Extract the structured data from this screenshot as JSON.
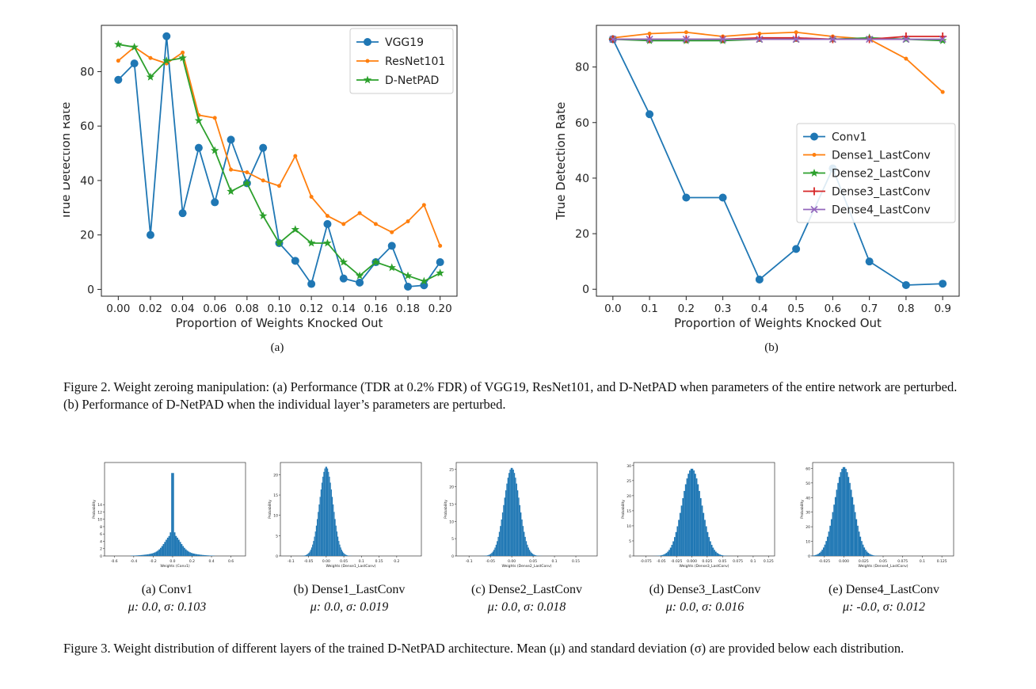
{
  "figure2": {
    "sub_a": "(a)",
    "sub_b": "(b)",
    "caption_label": "Figure 2.",
    "caption_text": "Weight zeroing manipulation: (a) Performance (TDR at 0.2% FDR) of VGG19, ResNet101, and D-NetPAD when parameters of the entire network are perturbed. (b) Performance of D-NetPAD when the individual layer’s parameters are perturbed."
  },
  "figure3": {
    "caption_label": "Figure 3.",
    "caption_text": "Weight distribution of different layers of the trained D-NetPAD architecture. Mean (μ) and standard deviation (σ) are provided below each distribution.",
    "panels": [
      {
        "label": "(a) Conv1",
        "stats": "μ: 0.0, σ: 0.103"
      },
      {
        "label": "(b) Dense1_LastConv",
        "stats": "μ: 0.0, σ: 0.019"
      },
      {
        "label": "(c) Dense2_LastConv",
        "stats": "μ: 0.0, σ: 0.018"
      },
      {
        "label": "(d) Dense3_LastConv",
        "stats": "μ: 0.0, σ: 0.016"
      },
      {
        "label": "(e) Dense4_LastConv",
        "stats": "μ: -0.0, σ: 0.012"
      }
    ]
  },
  "chart_data": [
    {
      "type": "line",
      "xlabel": "Proportion of Weights Knocked Out",
      "ylabel": "True Detection Rate",
      "xlim": [
        -0.0105,
        0.2105
      ],
      "ylim": [
        -2.5,
        97
      ],
      "xticks": [
        "0.00",
        "0.02",
        "0.04",
        "0.06",
        "0.08",
        "0.10",
        "0.12",
        "0.14",
        "0.16",
        "0.18",
        "0.20"
      ],
      "yticks": [
        "0",
        "20",
        "40",
        "60",
        "80"
      ],
      "legend": "top-right",
      "x": [
        0.0,
        0.01,
        0.02,
        0.03,
        0.04,
        0.05,
        0.06,
        0.07,
        0.08,
        0.09,
        0.1,
        0.11,
        0.12,
        0.13,
        0.14,
        0.15,
        0.16,
        0.17,
        0.18,
        0.19,
        0.2
      ],
      "series": [
        {
          "name": "VGG19",
          "color": "#1f77b4",
          "marker": "circle",
          "values": [
            77,
            83,
            20,
            93,
            28,
            52,
            32,
            55,
            39,
            52,
            17,
            10.5,
            2,
            24,
            4,
            2.5,
            10,
            16,
            1,
            1.5,
            10
          ]
        },
        {
          "name": "ResNet101",
          "color": "#ff7f0e",
          "marker": "dot",
          "values": [
            84,
            89,
            85,
            83,
            87,
            64,
            63,
            44,
            43,
            40,
            38,
            49,
            34,
            27,
            24,
            28,
            24,
            21,
            25,
            31,
            16
          ]
        },
        {
          "name": "D-NetPAD",
          "color": "#2ca02c",
          "marker": "star",
          "values": [
            90,
            89,
            78,
            84,
            85,
            62,
            51,
            36,
            39,
            27,
            17,
            22,
            17,
            17,
            10,
            5,
            10,
            8,
            5,
            3,
            6
          ]
        }
      ]
    },
    {
      "type": "line",
      "xlabel": "Proportion of Weights Knocked Out",
      "ylabel": "True Detection Rate",
      "xlim": [
        -0.045,
        0.945
      ],
      "ylim": [
        -2.5,
        95
      ],
      "xticks": [
        "0.0",
        "0.1",
        "0.2",
        "0.3",
        "0.4",
        "0.5",
        "0.6",
        "0.7",
        "0.8",
        "0.9"
      ],
      "yticks": [
        "0",
        "20",
        "40",
        "60",
        "80"
      ],
      "legend": "center-right",
      "x": [
        0.0,
        0.1,
        0.2,
        0.3,
        0.4,
        0.5,
        0.6,
        0.7,
        0.8,
        0.9
      ],
      "series": [
        {
          "name": "Conv1",
          "color": "#1f77b4",
          "marker": "circle",
          "values": [
            90,
            63,
            33,
            33,
            3.5,
            14.5,
            43.5,
            10,
            1.5,
            2
          ]
        },
        {
          "name": "Dense1_LastConv",
          "color": "#ff7f0e",
          "marker": "dot",
          "values": [
            90.5,
            92,
            92.5,
            91,
            92,
            92.5,
            91,
            90,
            83,
            71
          ]
        },
        {
          "name": "Dense2_LastConv",
          "color": "#2ca02c",
          "marker": "star",
          "values": [
            90,
            89.5,
            89.5,
            89.5,
            90,
            90,
            90,
            90.5,
            90,
            89.5
          ]
        },
        {
          "name": "Dense3_LastConv",
          "color": "#d62728",
          "marker": "plus",
          "values": [
            90,
            90,
            90,
            90,
            90.5,
            90.5,
            90,
            90,
            91,
            91
          ]
        },
        {
          "name": "Dense4_LastConv",
          "color": "#9467bd",
          "marker": "x",
          "values": [
            90,
            90,
            90,
            90,
            90,
            90,
            90,
            90,
            90,
            90
          ]
        }
      ]
    },
    {
      "type": "bar",
      "xlabel": "Weights (Conv1)",
      "ylabel": "Probability",
      "xlim": [
        -0.7,
        0.75
      ],
      "ylim": [
        0,
        25.5
      ],
      "xticks": [
        -0.6,
        -0.4,
        -0.2,
        0.0,
        0.2,
        0.4,
        0.6
      ],
      "yticks": [
        0,
        2,
        4,
        6,
        8,
        10,
        12,
        14
      ],
      "mu": 0.0,
      "sigma": 0.103,
      "peak": 25,
      "shape": "spike"
    },
    {
      "type": "bar",
      "xlabel": "Weights (Dense1_LastConv)",
      "ylabel": "Probability",
      "xlim": [
        -0.13,
        0.27
      ],
      "ylim": [
        0,
        23
      ],
      "xticks": [
        -0.1,
        -0.05,
        0.0,
        0.05,
        0.1,
        0.15,
        0.2
      ],
      "yticks": [
        0,
        5,
        10,
        15,
        20
      ],
      "mu": 0.0,
      "sigma": 0.019,
      "peak": 22
    },
    {
      "type": "bar",
      "xlabel": "Weights (Dense2_LastConv)",
      "ylabel": "Probability",
      "xlim": [
        -0.13,
        0.2
      ],
      "ylim": [
        0,
        27
      ],
      "xticks": [
        -0.1,
        -0.05,
        0.0,
        0.05,
        0.1,
        0.15
      ],
      "yticks": [
        0,
        5,
        10,
        15,
        20,
        25
      ],
      "mu": 0.0,
      "sigma": 0.018,
      "peak": 25.5
    },
    {
      "type": "bar",
      "xlabel": "Weights (Dense3_LastConv)",
      "ylabel": "Probability",
      "xlim": [
        -0.095,
        0.135
      ],
      "ylim": [
        0,
        31
      ],
      "xticks": [
        -0.075,
        -0.05,
        -0.025,
        0.0,
        0.025,
        0.05,
        0.075,
        0.1,
        0.125
      ],
      "yticks": [
        0,
        5,
        10,
        15,
        20,
        25,
        30
      ],
      "mu": 0.0,
      "sigma": 0.016,
      "peak": 29
    },
    {
      "type": "bar",
      "xlabel": "Weights (Dense4_LastConv)",
      "ylabel": "Probability",
      "xlim": [
        -0.04,
        0.14
      ],
      "ylim": [
        0,
        64
      ],
      "xticks": [
        -0.025,
        0.0,
        0.025,
        0.05,
        0.075,
        0.1,
        0.125
      ],
      "yticks": [
        0,
        10,
        20,
        30,
        40,
        50,
        60
      ],
      "mu": 0.0,
      "sigma": 0.012,
      "peak": 61
    }
  ]
}
